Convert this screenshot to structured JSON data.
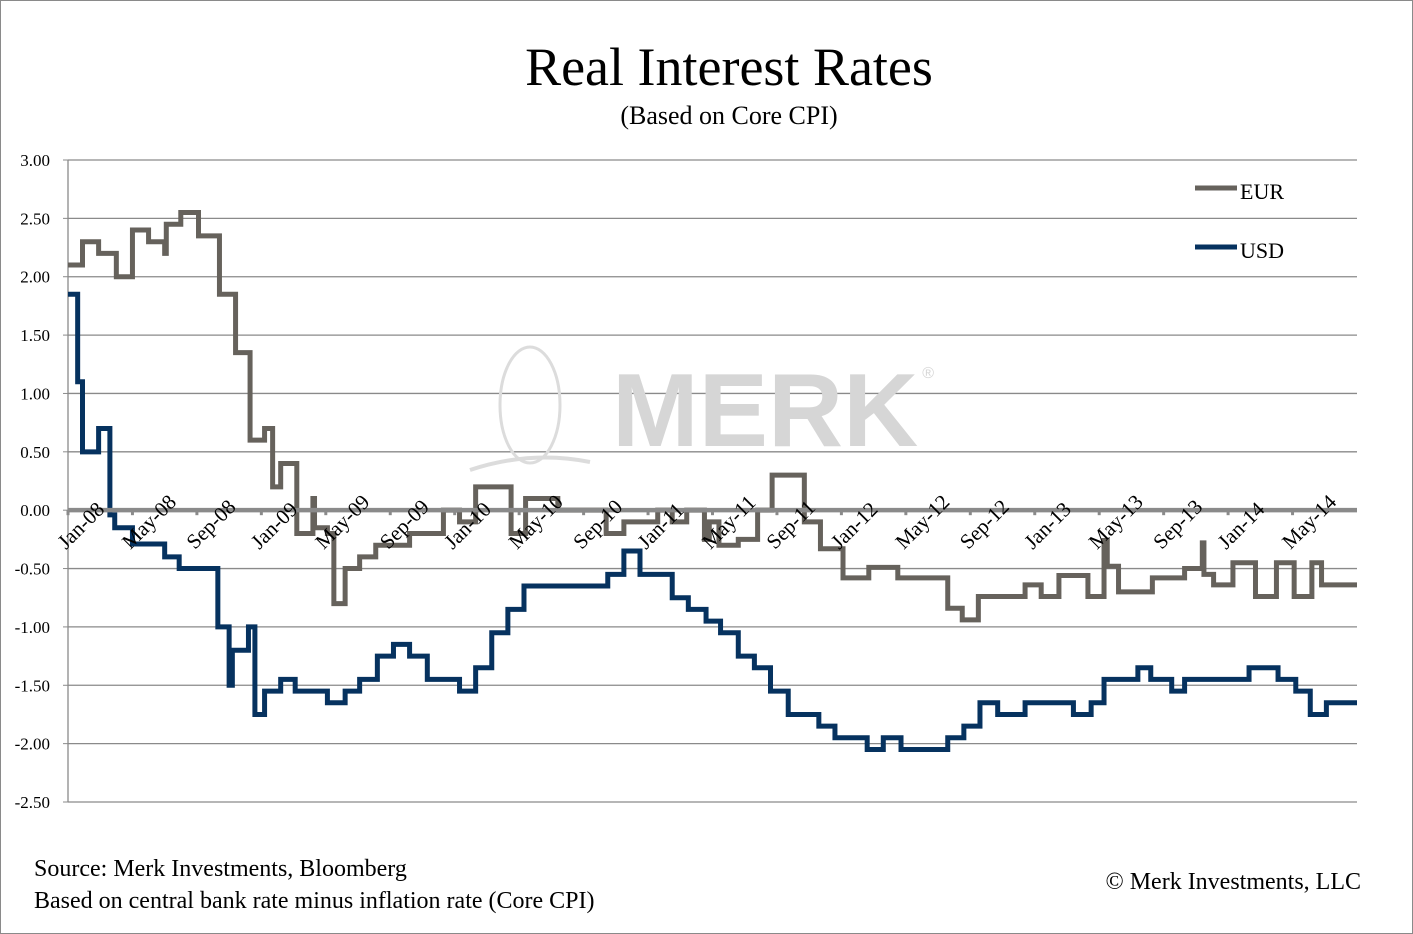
{
  "chart_data": {
    "type": "line",
    "title": "Real Interest Rates",
    "subtitle": "(Based on Core CPI)",
    "xlabel": "",
    "ylabel": "",
    "x_unit": "months since Jan-08",
    "xlim": [
      0,
      80
    ],
    "ylim": [
      -2.5,
      3.0
    ],
    "yticks": [
      "3.00",
      "2.50",
      "2.00",
      "1.50",
      "1.00",
      "0.50",
      "0.00",
      "-0.50",
      "-1.00",
      "-1.50",
      "-2.00",
      "-2.50"
    ],
    "ytick_values": [
      3.0,
      2.5,
      2.0,
      1.5,
      1.0,
      0.5,
      0.0,
      -0.5,
      -1.0,
      -1.5,
      -2.0,
      -2.5
    ],
    "xticks": [
      "Jan-08",
      "May-08",
      "Sep-08",
      "Jan-09",
      "May-09",
      "Sep-09",
      "Jan-10",
      "May-10",
      "Sep-10",
      "Jan-11",
      "May-11",
      "Sep-11",
      "Jan-12",
      "May-12",
      "Sep-12",
      "Jan-13",
      "May-13",
      "Sep-13",
      "Jan-14",
      "May-14"
    ],
    "grid": true,
    "legend_position": "top-right",
    "series": [
      {
        "name": "EUR",
        "color": "#66625c",
        "step": true,
        "points": [
          [
            0,
            2.1
          ],
          [
            0.9,
            2.3
          ],
          [
            1.9,
            2.2
          ],
          [
            3.0,
            2.0
          ],
          [
            4.0,
            2.4
          ],
          [
            5.0,
            2.3
          ],
          [
            6.0,
            2.2
          ],
          [
            6.1,
            2.45
          ],
          [
            7.0,
            2.55
          ],
          [
            8.1,
            2.35
          ],
          [
            9.4,
            1.85
          ],
          [
            10.4,
            1.35
          ],
          [
            11.3,
            0.6
          ],
          [
            12.2,
            0.7
          ],
          [
            12.7,
            0.2
          ],
          [
            13.2,
            0.4
          ],
          [
            14.2,
            -0.2
          ],
          [
            15.2,
            0.1
          ],
          [
            15.3,
            -0.15
          ],
          [
            16.1,
            -0.2
          ],
          [
            16.5,
            -0.8
          ],
          [
            17.2,
            -0.5
          ],
          [
            18.1,
            -0.4
          ],
          [
            19.1,
            -0.3
          ],
          [
            21.2,
            -0.2
          ],
          [
            23.3,
            0.0
          ],
          [
            24.3,
            -0.1
          ],
          [
            25.3,
            0.2
          ],
          [
            27.5,
            -0.2
          ],
          [
            28.4,
            0.1
          ],
          [
            30.4,
            0.0
          ],
          [
            33.4,
            -0.2
          ],
          [
            34.5,
            -0.1
          ],
          [
            36.6,
            0.0
          ],
          [
            37.5,
            -0.1
          ],
          [
            38.4,
            0.0
          ],
          [
            39.5,
            -0.25
          ],
          [
            39.8,
            -0.1
          ],
          [
            40.4,
            -0.3
          ],
          [
            41.6,
            -0.25
          ],
          [
            42.8,
            0.0
          ],
          [
            43.7,
            0.3
          ],
          [
            45.7,
            -0.1
          ],
          [
            46.7,
            -0.33
          ],
          [
            48.1,
            -0.58
          ],
          [
            49.7,
            -0.49
          ],
          [
            51.5,
            -0.58
          ],
          [
            54.6,
            -0.84
          ],
          [
            55.5,
            -0.94
          ],
          [
            56.5,
            -0.74
          ],
          [
            59.4,
            -0.64
          ],
          [
            60.4,
            -0.74
          ],
          [
            61.5,
            -0.56
          ],
          [
            63.3,
            -0.74
          ],
          [
            64.3,
            -0.26
          ],
          [
            64.5,
            -0.48
          ],
          [
            65.2,
            -0.7
          ],
          [
            67.3,
            -0.58
          ],
          [
            69.3,
            -0.5
          ],
          [
            70.4,
            -0.28
          ],
          [
            70.5,
            -0.55
          ],
          [
            71.1,
            -0.64
          ],
          [
            72.3,
            -0.45
          ],
          [
            73.7,
            -0.74
          ],
          [
            75.0,
            -0.45
          ],
          [
            76.1,
            -0.74
          ],
          [
            77.2,
            -0.45
          ],
          [
            77.8,
            -0.64
          ],
          [
            80,
            -0.64
          ]
        ]
      },
      {
        "name": "USD",
        "color": "#06325f",
        "step": true,
        "points": [
          [
            0,
            1.85
          ],
          [
            0.6,
            1.1
          ],
          [
            0.9,
            0.5
          ],
          [
            1.9,
            0.7
          ],
          [
            2.6,
            -0.04
          ],
          [
            2.9,
            -0.15
          ],
          [
            4.0,
            -0.29
          ],
          [
            6.0,
            -0.4
          ],
          [
            6.9,
            -0.5
          ],
          [
            9.3,
            -1.0
          ],
          [
            10.0,
            -1.5
          ],
          [
            10.2,
            -1.2
          ],
          [
            11.2,
            -1.0
          ],
          [
            11.6,
            -1.75
          ],
          [
            12.2,
            -1.55
          ],
          [
            13.2,
            -1.45
          ],
          [
            14.1,
            -1.55
          ],
          [
            16.1,
            -1.65
          ],
          [
            17.2,
            -1.55
          ],
          [
            18.1,
            -1.45
          ],
          [
            19.2,
            -1.25
          ],
          [
            20.2,
            -1.15
          ],
          [
            21.2,
            -1.25
          ],
          [
            22.3,
            -1.45
          ],
          [
            24.3,
            -1.55
          ],
          [
            25.3,
            -1.35
          ],
          [
            26.3,
            -1.05
          ],
          [
            27.3,
            -0.85
          ],
          [
            28.3,
            -0.65
          ],
          [
            33.5,
            -0.55
          ],
          [
            34.5,
            -0.35
          ],
          [
            35.5,
            -0.55
          ],
          [
            37.5,
            -0.75
          ],
          [
            38.5,
            -0.85
          ],
          [
            39.6,
            -0.95
          ],
          [
            40.5,
            -1.05
          ],
          [
            41.6,
            -1.25
          ],
          [
            42.6,
            -1.35
          ],
          [
            43.6,
            -1.55
          ],
          [
            44.7,
            -1.75
          ],
          [
            46.6,
            -1.85
          ],
          [
            47.6,
            -1.95
          ],
          [
            49.6,
            -2.05
          ],
          [
            50.6,
            -1.95
          ],
          [
            51.7,
            -2.05
          ],
          [
            54.6,
            -1.95
          ],
          [
            55.6,
            -1.85
          ],
          [
            56.6,
            -1.65
          ],
          [
            57.7,
            -1.75
          ],
          [
            59.4,
            -1.65
          ],
          [
            62.4,
            -1.75
          ],
          [
            63.5,
            -1.65
          ],
          [
            64.3,
            -1.45
          ],
          [
            66.4,
            -1.35
          ],
          [
            67.2,
            -1.45
          ],
          [
            68.5,
            -1.55
          ],
          [
            69.3,
            -1.45
          ],
          [
            73.3,
            -1.35
          ],
          [
            75.1,
            -1.45
          ],
          [
            76.2,
            -1.55
          ],
          [
            77.1,
            -1.75
          ],
          [
            78.1,
            -1.65
          ],
          [
            80,
            -1.65
          ]
        ]
      }
    ]
  },
  "watermark": {
    "text": "MERK",
    "mark": "®"
  },
  "footer": {
    "source": "Source: Merk Investments, Bloomberg",
    "note": "Based on central bank rate minus inflation rate (Core CPI)",
    "copyright": "© Merk Investments, LLC"
  },
  "colors": {
    "grid": "#8a8a8a",
    "zero_line": "#8a8a8a",
    "watermark": "#d6d6d6"
  }
}
